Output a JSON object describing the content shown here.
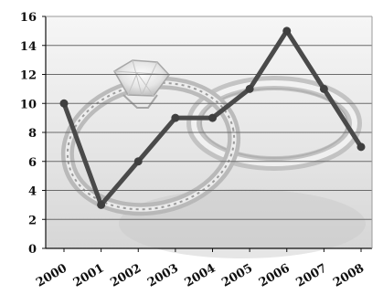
{
  "chart_data": {
    "type": "line",
    "title": "",
    "xlabel": "",
    "ylabel": "",
    "categories": [
      "2000",
      "2001",
      "2002",
      "2003",
      "2004",
      "2005",
      "2006",
      "2007",
      "2008"
    ],
    "series": [
      {
        "values": [
          10,
          3,
          6,
          9,
          9,
          11,
          15,
          11,
          7
        ]
      }
    ],
    "ylim": [
      0,
      16
    ],
    "yticks": [
      "0",
      "2",
      "4",
      "6",
      "8",
      "10",
      "12",
      "14",
      "16"
    ],
    "grid": true,
    "legend": "none",
    "background_image": "wedding-rings-photo",
    "colors": {
      "line": "#4a4a4a",
      "marker": "#3f3f3f",
      "grid": "#6a6a6a",
      "axis": "#111111",
      "plot_bg_top": "#f4f4f4",
      "plot_bg_bottom": "#d9d9d9"
    }
  }
}
